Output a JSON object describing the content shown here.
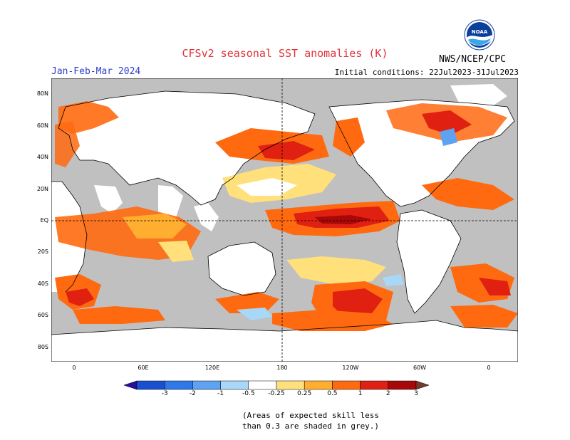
{
  "header": {
    "title": "CFSv2 seasonal SST anomalies (K)",
    "period": "Jan-Feb-Mar 2024",
    "initial_conditions": "Initial conditions: 22Jul2023-31Jul2023",
    "agency": "NWS/NCEP/CPC",
    "logo_text": "NOAA"
  },
  "axes": {
    "lat_labels": [
      "80N",
      "60N",
      "40N",
      "20N",
      "EQ",
      "20S",
      "40S",
      "60S",
      "80S"
    ],
    "lon_labels": [
      "0",
      "60E",
      "120E",
      "180",
      "120W",
      "60W",
      "0"
    ]
  },
  "colorbar": {
    "labels": [
      "-3",
      "-2",
      "-1",
      "-0.5",
      "-0.25",
      "0.25",
      "0.5",
      "1",
      "2",
      "3"
    ],
    "colors": [
      "#2a0da0",
      "#1a4fd0",
      "#2f78e8",
      "#5ea2f2",
      "#a8d8f8",
      "#ffffff",
      "#ffe07a",
      "#ffae30",
      "#ff6a10",
      "#e02010",
      "#a80808",
      "#7a3a2a"
    ]
  },
  "note": {
    "line1": "(Areas of expected skill less",
    "line2": "than 0.3 are shaded in grey.)"
  },
  "colors": {
    "land": "#ffffff",
    "no_skill": "#c0c0c0"
  }
}
